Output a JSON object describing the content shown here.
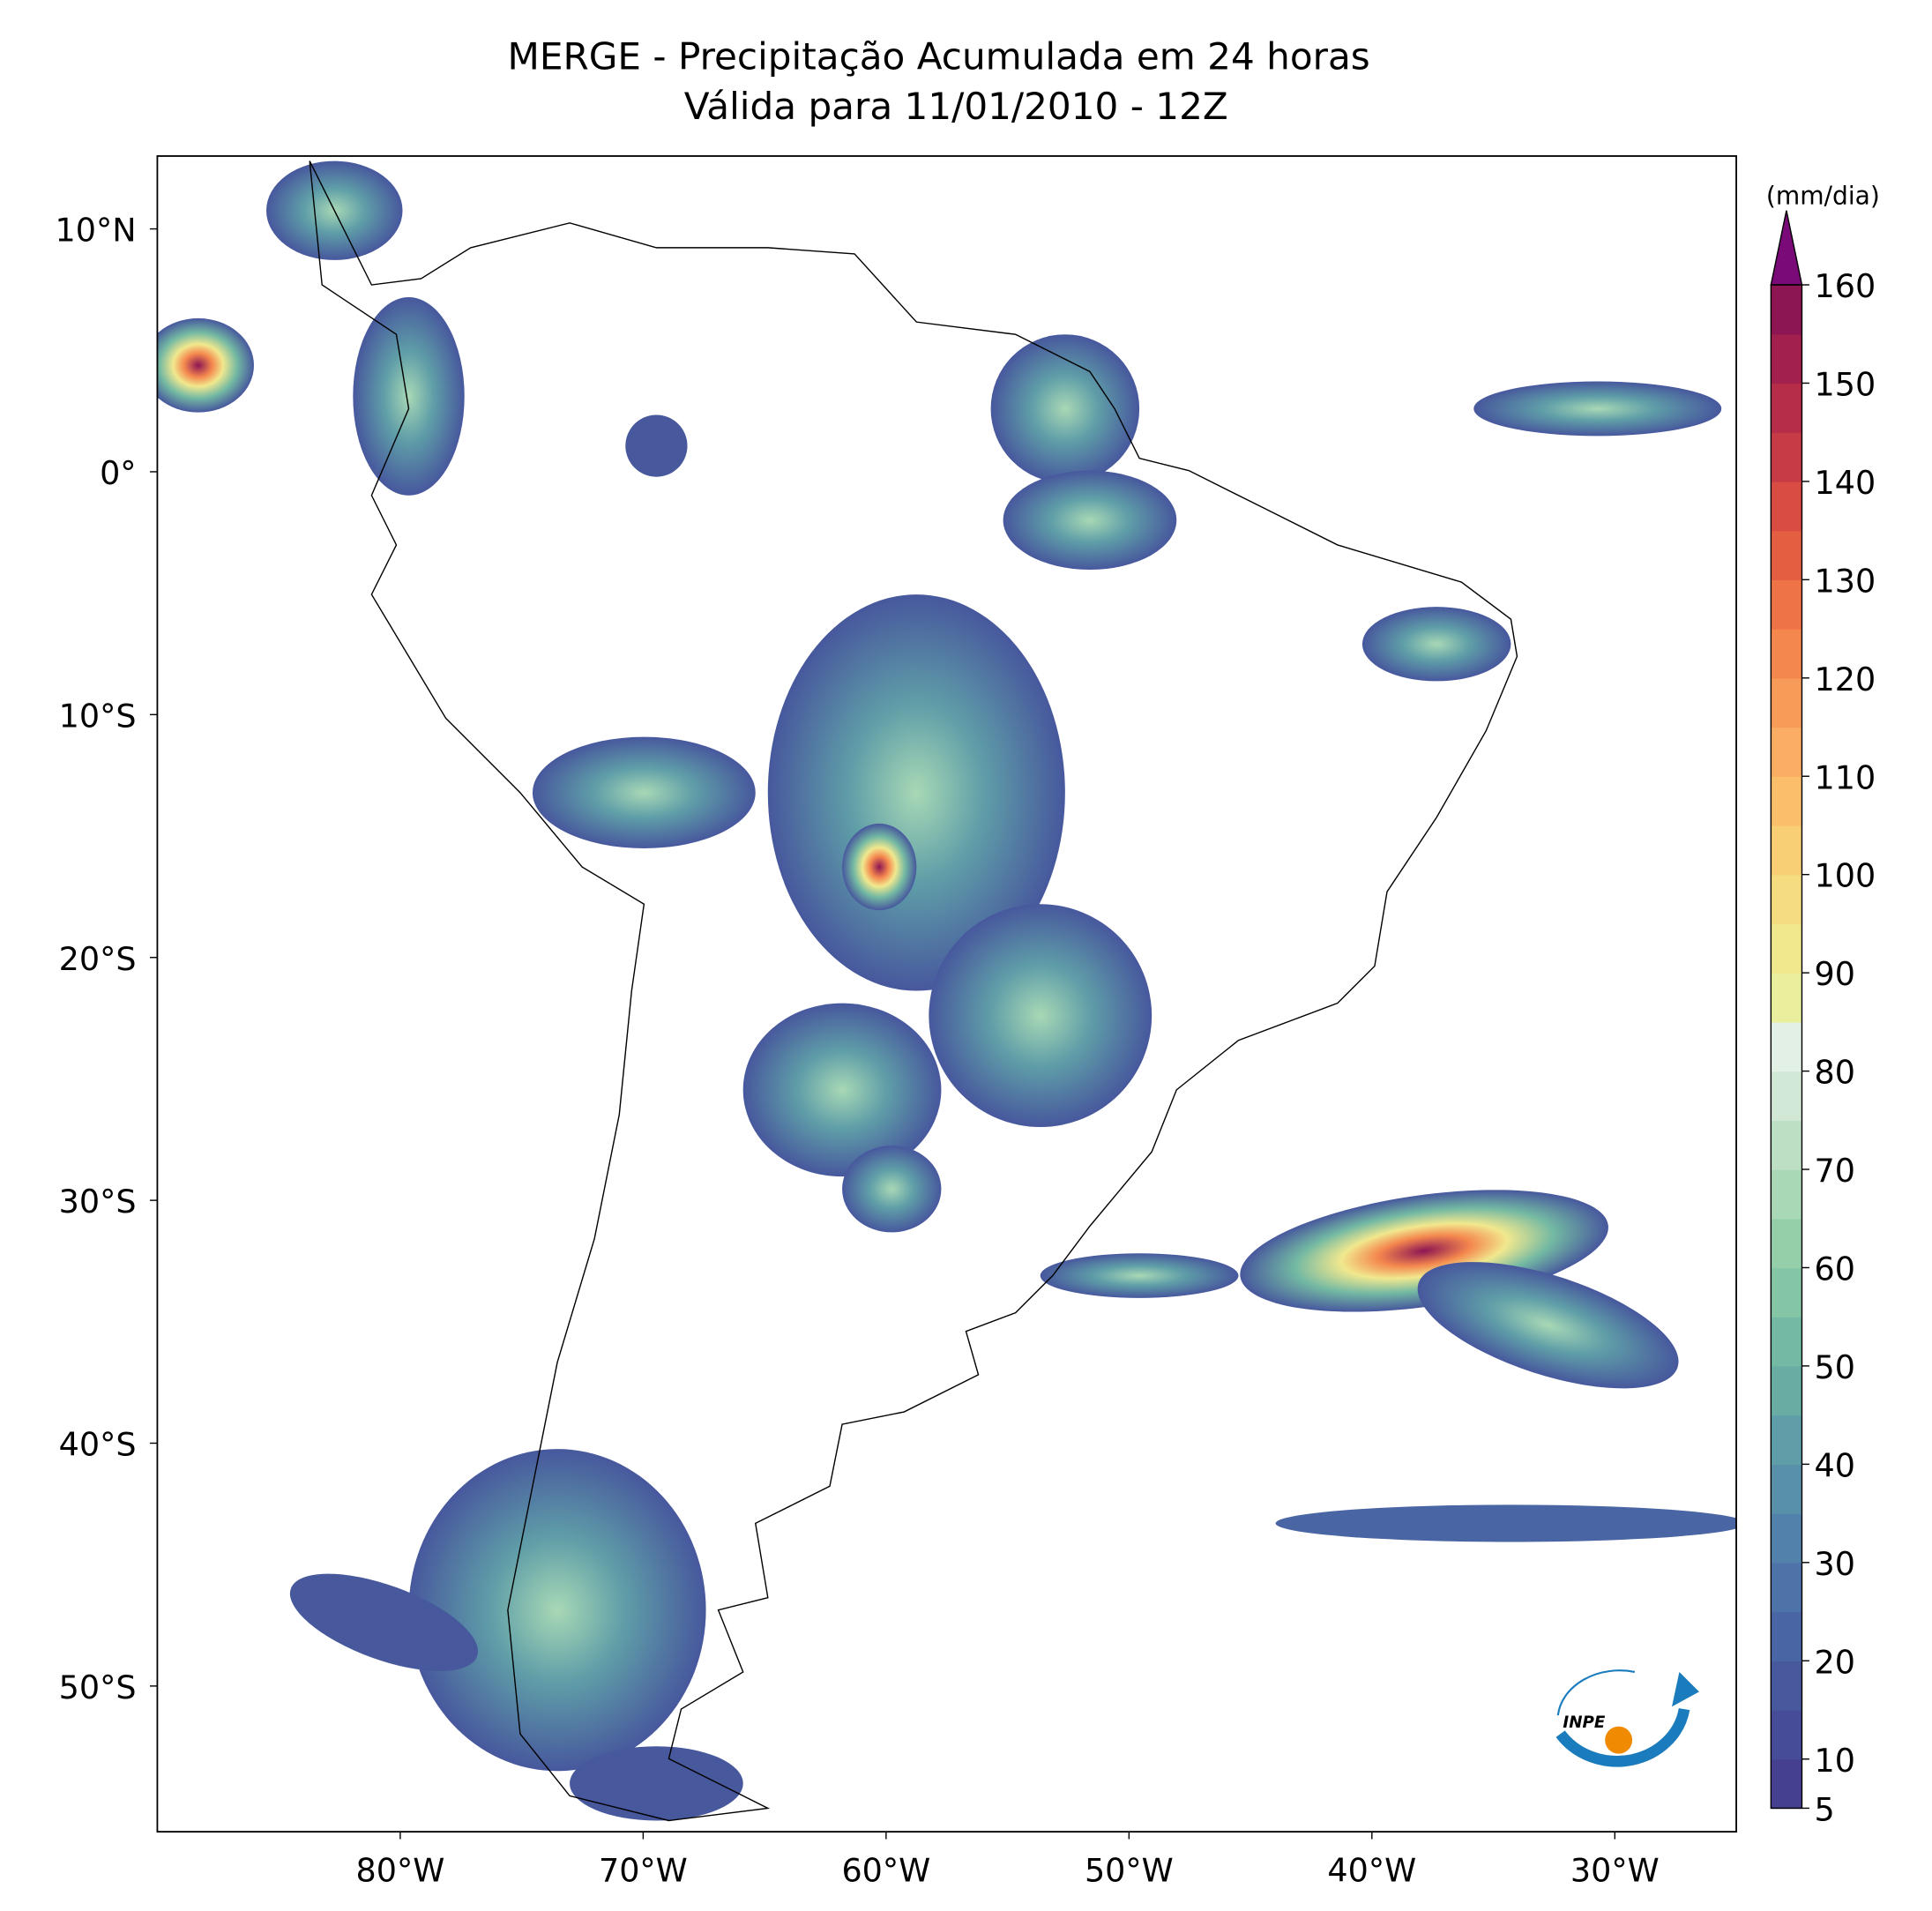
{
  "chart_data": {
    "type": "map",
    "title": "MERGE - Precipitação Acumulada em 24 horas",
    "subtitle": "Válida para 11/01/2010 - 12Z",
    "xlim": [
      -90,
      -25
    ],
    "ylim": [
      -56,
      13
    ],
    "xticks": [
      {
        "value": -80,
        "label": "80°W"
      },
      {
        "value": -70,
        "label": "70°W"
      },
      {
        "value": -60,
        "label": "60°W"
      },
      {
        "value": -50,
        "label": "50°W"
      },
      {
        "value": -40,
        "label": "40°W"
      },
      {
        "value": -30,
        "label": "30°W"
      }
    ],
    "yticks": [
      {
        "value": 10,
        "label": "10°N"
      },
      {
        "value": 0,
        "label": "0°"
      },
      {
        "value": -10,
        "label": "10°S"
      },
      {
        "value": -20,
        "label": "20°S"
      },
      {
        "value": -30,
        "label": "30°S"
      },
      {
        "value": -40,
        "label": "40°S"
      },
      {
        "value": -50,
        "label": "50°S"
      }
    ],
    "colorbar": {
      "label": "(mm/dia)",
      "lim": [
        5,
        160
      ],
      "ticks": [
        5,
        10,
        20,
        30,
        40,
        50,
        60,
        70,
        80,
        90,
        100,
        110,
        120,
        130,
        140,
        150,
        160
      ],
      "extend_color": "#7a0a77",
      "colors": [
        "#45408f",
        "#464c97",
        "#47589d",
        "#4a65a3",
        "#4e73a8",
        "#5282ab",
        "#5890aa",
        "#5f9ea8",
        "#68aca4",
        "#73b9a3",
        "#83c5a5",
        "#95cfaa",
        "#a8d8b5",
        "#bde0c4",
        "#d1e8d6",
        "#e2f0e6",
        "#e9ef9c",
        "#f1e88e",
        "#f6dc80",
        "#f9cf76",
        "#fbbf6c",
        "#fbae63",
        "#f89b58",
        "#f4874e",
        "#ee7346",
        "#e45f42",
        "#d84c43",
        "#c73b46",
        "#b52d48",
        "#a2204d",
        "#8c1654"
      ]
    },
    "logo": "INPE"
  }
}
